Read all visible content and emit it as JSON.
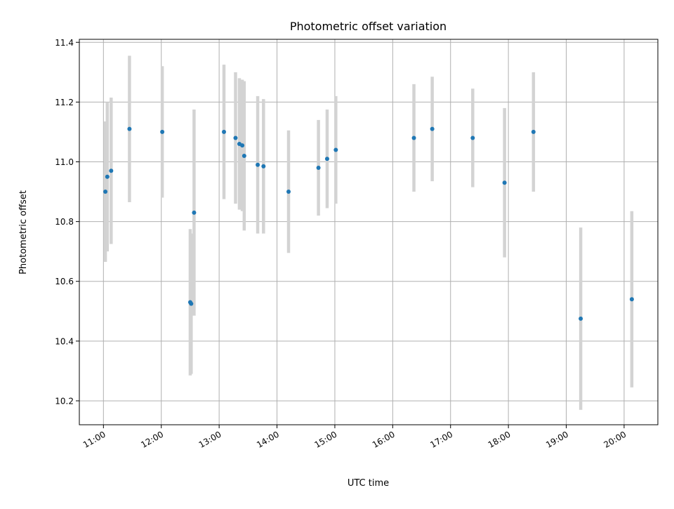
{
  "chart_data": {
    "type": "scatter",
    "title": "Photometric offset variation",
    "xlabel": "UTC time",
    "ylabel": "Photometric offset",
    "x_ticks": [
      "11:00",
      "12:00",
      "13:00",
      "14:00",
      "15:00",
      "16:00",
      "17:00",
      "18:00",
      "19:00",
      "20:00"
    ],
    "y_ticks": [
      "10.2",
      "10.4",
      "10.6",
      "10.8",
      "11.0",
      "11.2",
      "11.4"
    ],
    "xlim": [
      "10:35",
      "20:35"
    ],
    "ylim": [
      10.12,
      11.41
    ],
    "grid": true,
    "marker_color": "#1f77b4",
    "errorbar_color": "#d3d3d3",
    "points": [
      {
        "x": "11:02",
        "y": 10.9,
        "yerr": 0.235
      },
      {
        "x": "11:04",
        "y": 10.95,
        "yerr": 0.25
      },
      {
        "x": "11:08",
        "y": 10.97,
        "yerr": 0.245
      },
      {
        "x": "11:27",
        "y": 11.11,
        "yerr": 0.245
      },
      {
        "x": "12:01",
        "y": 11.1,
        "yerr": 0.22
      },
      {
        "x": "12:30",
        "y": 10.53,
        "yerr": 0.245
      },
      {
        "x": "12:31",
        "y": 10.525,
        "yerr": 0.235
      },
      {
        "x": "12:34",
        "y": 10.83,
        "yerr": 0.345
      },
      {
        "x": "13:05",
        "y": 11.1,
        "yerr": 0.225
      },
      {
        "x": "13:17",
        "y": 11.08,
        "yerr": 0.22
      },
      {
        "x": "13:21",
        "y": 11.06,
        "yerr": 0.22
      },
      {
        "x": "13:24",
        "y": 11.055,
        "yerr": 0.22
      },
      {
        "x": "13:26",
        "y": 11.02,
        "yerr": 0.25
      },
      {
        "x": "13:40",
        "y": 10.99,
        "yerr": 0.23
      },
      {
        "x": "13:46",
        "y": 10.985,
        "yerr": 0.225
      },
      {
        "x": "14:12",
        "y": 10.9,
        "yerr": 0.205
      },
      {
        "x": "14:43",
        "y": 10.98,
        "yerr": 0.16
      },
      {
        "x": "14:52",
        "y": 11.01,
        "yerr": 0.165
      },
      {
        "x": "15:01",
        "y": 11.04,
        "yerr": 0.18
      },
      {
        "x": "16:22",
        "y": 11.08,
        "yerr": 0.18
      },
      {
        "x": "16:41",
        "y": 11.11,
        "yerr": 0.175
      },
      {
        "x": "17:23",
        "y": 11.08,
        "yerr": 0.165
      },
      {
        "x": "17:56",
        "y": 10.93,
        "yerr": 0.25
      },
      {
        "x": "18:26",
        "y": 11.1,
        "yerr": 0.2
      },
      {
        "x": "19:15",
        "y": 10.475,
        "yerr": 0.305
      },
      {
        "x": "20:08",
        "y": 10.54,
        "yerr": 0.295
      }
    ]
  }
}
